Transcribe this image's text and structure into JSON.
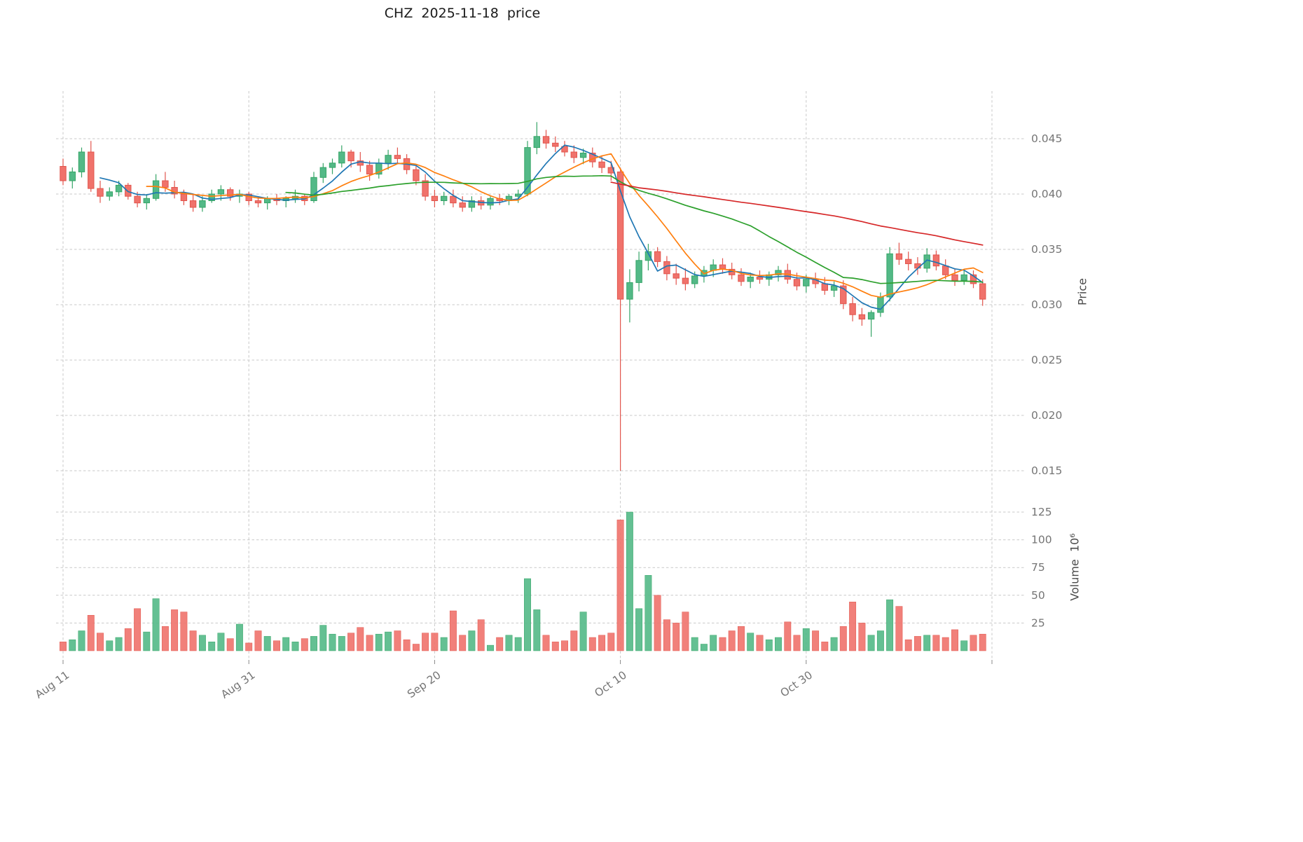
{
  "title": "CHZ  2025-11-18  price",
  "axes": {
    "price_axis_label": "Price",
    "volume_axis_label": "Volume  10⁶",
    "price_ticks": [
      0.045,
      0.04,
      0.035,
      0.03,
      0.025,
      0.02,
      0.015
    ],
    "volume_ticks": [
      125,
      100,
      75,
      50,
      25
    ],
    "x_ticks": [
      {
        "label": "Aug 11",
        "index": 0
      },
      {
        "label": "Aug 31",
        "index": 20
      },
      {
        "label": "Sep 20",
        "index": 40
      },
      {
        "label": "Oct 10",
        "index": 60
      },
      {
        "label": "Oct 30",
        "index": 80
      },
      {
        "label": "",
        "index": 100
      }
    ]
  },
  "chart_data": {
    "type": "candlestick",
    "subtype": "price-with-volume-panel",
    "symbol": "CHZ",
    "as_of_date": "2025-11-18",
    "title": "CHZ  2025-11-18  price",
    "ylabel": "Price",
    "ylabel_volume": "Volume  10⁶",
    "price_axis_range": [
      0.0145,
      0.0495
    ],
    "volume_axis_range_millions": [
      0,
      135
    ],
    "grid": true,
    "legend_position": "none",
    "colors": {
      "up": "#53b987",
      "down": "#f0726b",
      "up_edge": "#36a567",
      "down_edge": "#e2554d",
      "grid": "#c9c9c9",
      "tick_text": "#757575",
      "title_text": "#1a1a1a"
    },
    "moving_averages": [
      {
        "name": "MA5",
        "window": 5,
        "color": "#1f77b4"
      },
      {
        "name": "MA10",
        "window": 10,
        "color": "#ff7f0e"
      },
      {
        "name": "MA25",
        "window": 25,
        "color": "#2ca02c"
      },
      {
        "name": "MA60",
        "window": 60,
        "color": "#d62728"
      }
    ],
    "candle_columns": [
      "date",
      "open",
      "high",
      "low",
      "close",
      "volume_millions"
    ],
    "candles": [
      [
        "2025-08-11",
        0.0425,
        0.0432,
        0.0408,
        0.0412,
        8
      ],
      [
        "2025-08-12",
        0.0412,
        0.0424,
        0.0405,
        0.042,
        10
      ],
      [
        "2025-08-13",
        0.042,
        0.0442,
        0.0415,
        0.0438,
        18
      ],
      [
        "2025-08-14",
        0.0438,
        0.0448,
        0.0402,
        0.0405,
        32
      ],
      [
        "2025-08-15",
        0.0405,
        0.0412,
        0.0392,
        0.0398,
        16
      ],
      [
        "2025-08-16",
        0.0398,
        0.0406,
        0.0394,
        0.0402,
        9
      ],
      [
        "2025-08-17",
        0.0402,
        0.0412,
        0.0398,
        0.0408,
        12
      ],
      [
        "2025-08-18",
        0.0408,
        0.041,
        0.0395,
        0.0398,
        20
      ],
      [
        "2025-08-19",
        0.0398,
        0.0402,
        0.0388,
        0.0392,
        38
      ],
      [
        "2025-08-20",
        0.0392,
        0.04,
        0.0386,
        0.0396,
        17
      ],
      [
        "2025-08-21",
        0.0396,
        0.0418,
        0.0394,
        0.0412,
        47
      ],
      [
        "2025-08-22",
        0.0412,
        0.042,
        0.0402,
        0.0406,
        22
      ],
      [
        "2025-08-23",
        0.0406,
        0.0412,
        0.0396,
        0.04,
        37
      ],
      [
        "2025-08-24",
        0.04,
        0.0404,
        0.039,
        0.0394,
        35
      ],
      [
        "2025-08-25",
        0.0394,
        0.04,
        0.0384,
        0.0388,
        18
      ],
      [
        "2025-08-26",
        0.0388,
        0.0398,
        0.0384,
        0.0394,
        14
      ],
      [
        "2025-08-27",
        0.0394,
        0.0404,
        0.0392,
        0.04,
        8
      ],
      [
        "2025-08-28",
        0.04,
        0.0408,
        0.0394,
        0.0404,
        16
      ],
      [
        "2025-08-29",
        0.0404,
        0.0406,
        0.0394,
        0.0398,
        11
      ],
      [
        "2025-08-30",
        0.0398,
        0.0404,
        0.0392,
        0.04,
        24
      ],
      [
        "2025-08-31",
        0.04,
        0.0402,
        0.039,
        0.0394,
        7
      ],
      [
        "2025-09-01",
        0.0394,
        0.0398,
        0.0388,
        0.0392,
        18
      ],
      [
        "2025-09-02",
        0.0392,
        0.0398,
        0.0386,
        0.0396,
        13
      ],
      [
        "2025-09-03",
        0.0396,
        0.04,
        0.039,
        0.0394,
        9
      ],
      [
        "2025-09-04",
        0.0394,
        0.0398,
        0.0388,
        0.0396,
        12
      ],
      [
        "2025-09-05",
        0.0396,
        0.0404,
        0.0392,
        0.0398,
        8
      ],
      [
        "2025-09-06",
        0.0398,
        0.04,
        0.039,
        0.0394,
        11
      ],
      [
        "2025-09-07",
        0.0394,
        0.042,
        0.0392,
        0.0415,
        13
      ],
      [
        "2025-09-08",
        0.0415,
        0.0428,
        0.041,
        0.0424,
        23
      ],
      [
        "2025-09-09",
        0.0424,
        0.0432,
        0.0418,
        0.0428,
        15
      ],
      [
        "2025-09-10",
        0.0428,
        0.0444,
        0.0424,
        0.0438,
        13
      ],
      [
        "2025-09-11",
        0.0438,
        0.044,
        0.0424,
        0.043,
        16
      ],
      [
        "2025-09-12",
        0.043,
        0.0438,
        0.042,
        0.0426,
        21
      ],
      [
        "2025-09-13",
        0.0426,
        0.043,
        0.0412,
        0.0418,
        14
      ],
      [
        "2025-09-14",
        0.0418,
        0.0432,
        0.0414,
        0.0428,
        15
      ],
      [
        "2025-09-15",
        0.0428,
        0.044,
        0.0422,
        0.0435,
        17
      ],
      [
        "2025-09-16",
        0.0435,
        0.0442,
        0.0428,
        0.0432,
        18
      ],
      [
        "2025-09-17",
        0.0432,
        0.0436,
        0.0418,
        0.0422,
        10
      ],
      [
        "2025-09-18",
        0.0422,
        0.0426,
        0.0408,
        0.0412,
        6
      ],
      [
        "2025-09-19",
        0.0412,
        0.0418,
        0.0394,
        0.0398,
        16
      ],
      [
        "2025-09-20",
        0.0398,
        0.0404,
        0.0388,
        0.0394,
        16
      ],
      [
        "2025-09-21",
        0.0394,
        0.0402,
        0.039,
        0.0398,
        12
      ],
      [
        "2025-09-22",
        0.0398,
        0.0404,
        0.0388,
        0.0392,
        36
      ],
      [
        "2025-09-23",
        0.0392,
        0.0398,
        0.0384,
        0.0388,
        14
      ],
      [
        "2025-09-24",
        0.0388,
        0.0398,
        0.0384,
        0.0394,
        18
      ],
      [
        "2025-09-25",
        0.0394,
        0.0398,
        0.0386,
        0.039,
        28
      ],
      [
        "2025-09-26",
        0.039,
        0.0398,
        0.0386,
        0.0396,
        5
      ],
      [
        "2025-09-27",
        0.0396,
        0.04,
        0.039,
        0.0394,
        12
      ],
      [
        "2025-09-28",
        0.0394,
        0.04,
        0.039,
        0.0398,
        14
      ],
      [
        "2025-09-29",
        0.0398,
        0.0404,
        0.0392,
        0.04,
        12
      ],
      [
        "2025-09-30",
        0.04,
        0.0448,
        0.0398,
        0.0442,
        65
      ],
      [
        "2025-10-01",
        0.0442,
        0.0465,
        0.0436,
        0.0452,
        37
      ],
      [
        "2025-10-02",
        0.0452,
        0.0458,
        0.0441,
        0.0446,
        14
      ],
      [
        "2025-10-03",
        0.0446,
        0.0452,
        0.0438,
        0.0443,
        8
      ],
      [
        "2025-10-04",
        0.0443,
        0.0448,
        0.0434,
        0.0438,
        9
      ],
      [
        "2025-10-05",
        0.0438,
        0.0444,
        0.0428,
        0.0433,
        18
      ],
      [
        "2025-10-06",
        0.0433,
        0.0441,
        0.0427,
        0.0437,
        35
      ],
      [
        "2025-10-07",
        0.0437,
        0.0442,
        0.0424,
        0.0429,
        12
      ],
      [
        "2025-10-08",
        0.0429,
        0.0435,
        0.0419,
        0.0424,
        14
      ],
      [
        "2025-10-09",
        0.0424,
        0.043,
        0.0412,
        0.0419,
        16
      ],
      [
        "2025-10-10",
        0.042,
        0.0424,
        0.015,
        0.0305,
        118
      ],
      [
        "2025-10-11",
        0.0305,
        0.0332,
        0.0284,
        0.032,
        125
      ],
      [
        "2025-10-12",
        0.032,
        0.0348,
        0.0312,
        0.034,
        38
      ],
      [
        "2025-10-13",
        0.034,
        0.0355,
        0.0331,
        0.0348,
        68
      ],
      [
        "2025-10-14",
        0.0348,
        0.0352,
        0.0334,
        0.0339,
        50
      ],
      [
        "2025-10-15",
        0.0339,
        0.0344,
        0.0322,
        0.0328,
        28
      ],
      [
        "2025-10-16",
        0.0328,
        0.0337,
        0.0318,
        0.0324,
        25
      ],
      [
        "2025-10-17",
        0.0324,
        0.0333,
        0.0313,
        0.0319,
        35
      ],
      [
        "2025-10-18",
        0.0319,
        0.033,
        0.0315,
        0.0326,
        12
      ],
      [
        "2025-10-19",
        0.0326,
        0.0335,
        0.032,
        0.0331,
        6
      ],
      [
        "2025-10-20",
        0.0331,
        0.0341,
        0.0325,
        0.0336,
        14
      ],
      [
        "2025-10-21",
        0.0336,
        0.0342,
        0.0328,
        0.0332,
        12
      ],
      [
        "2025-10-22",
        0.0332,
        0.0338,
        0.0323,
        0.0327,
        18
      ],
      [
        "2025-10-23",
        0.0327,
        0.0333,
        0.0317,
        0.0321,
        22
      ],
      [
        "2025-10-24",
        0.0321,
        0.0329,
        0.0315,
        0.0325,
        16
      ],
      [
        "2025-10-25",
        0.0325,
        0.0331,
        0.0319,
        0.0323,
        14
      ],
      [
        "2025-10-26",
        0.0323,
        0.033,
        0.0317,
        0.0327,
        10
      ],
      [
        "2025-10-27",
        0.0327,
        0.0335,
        0.0321,
        0.0331,
        12
      ],
      [
        "2025-10-28",
        0.0331,
        0.0337,
        0.0319,
        0.0323,
        26
      ],
      [
        "2025-10-29",
        0.0323,
        0.0329,
        0.0313,
        0.0317,
        14
      ],
      [
        "2025-10-30",
        0.0317,
        0.0327,
        0.0311,
        0.0323,
        20
      ],
      [
        "2025-10-31",
        0.0323,
        0.0329,
        0.0315,
        0.0319,
        18
      ],
      [
        "2025-11-01",
        0.0319,
        0.0325,
        0.0309,
        0.0313,
        8
      ],
      [
        "2025-11-02",
        0.0313,
        0.0321,
        0.0307,
        0.0317,
        12
      ],
      [
        "2025-11-03",
        0.0317,
        0.0322,
        0.0296,
        0.0301,
        22
      ],
      [
        "2025-11-04",
        0.0301,
        0.0307,
        0.0285,
        0.0291,
        44
      ],
      [
        "2025-11-05",
        0.0291,
        0.0297,
        0.0281,
        0.0287,
        25
      ],
      [
        "2025-11-06",
        0.0287,
        0.0295,
        0.0271,
        0.0293,
        14
      ],
      [
        "2025-11-07",
        0.0293,
        0.0311,
        0.0289,
        0.0307,
        18
      ],
      [
        "2025-11-08",
        0.0307,
        0.0352,
        0.0303,
        0.0346,
        46
      ],
      [
        "2025-11-09",
        0.0346,
        0.0356,
        0.0336,
        0.0341,
        40
      ],
      [
        "2025-11-10",
        0.0341,
        0.0348,
        0.0331,
        0.0337,
        10
      ],
      [
        "2025-11-11",
        0.0337,
        0.0343,
        0.0327,
        0.0333,
        13
      ],
      [
        "2025-11-12",
        0.0333,
        0.0351,
        0.0329,
        0.0345,
        14
      ],
      [
        "2025-11-13",
        0.0345,
        0.0349,
        0.0331,
        0.0335,
        14
      ],
      [
        "2025-11-14",
        0.0335,
        0.0341,
        0.0323,
        0.0327,
        12
      ],
      [
        "2025-11-15",
        0.0327,
        0.0333,
        0.0317,
        0.0322,
        19
      ],
      [
        "2025-11-16",
        0.0322,
        0.0331,
        0.0318,
        0.0327,
        9
      ],
      [
        "2025-11-17",
        0.0327,
        0.0331,
        0.0315,
        0.0319,
        14
      ],
      [
        "2025-11-18",
        0.0319,
        0.0323,
        0.0299,
        0.0305,
        15
      ]
    ]
  }
}
